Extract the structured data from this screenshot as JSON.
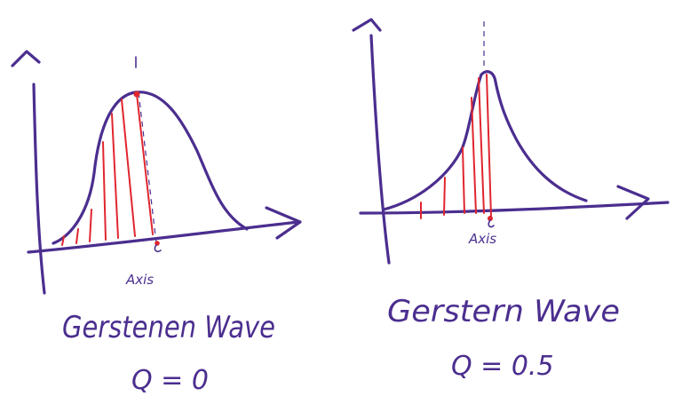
{
  "colors": {
    "ink": "#4b2e8f",
    "streamline": "#e0262f",
    "background": "#ffffff"
  },
  "left_panel": {
    "axis_label": "Axis",
    "title": "Gerstenen Wave",
    "formula": "Q = 0"
  },
  "right_panel": {
    "axis_label": "Axis",
    "title": "Gerstern Wave",
    "formula": "Q = 0.5"
  }
}
